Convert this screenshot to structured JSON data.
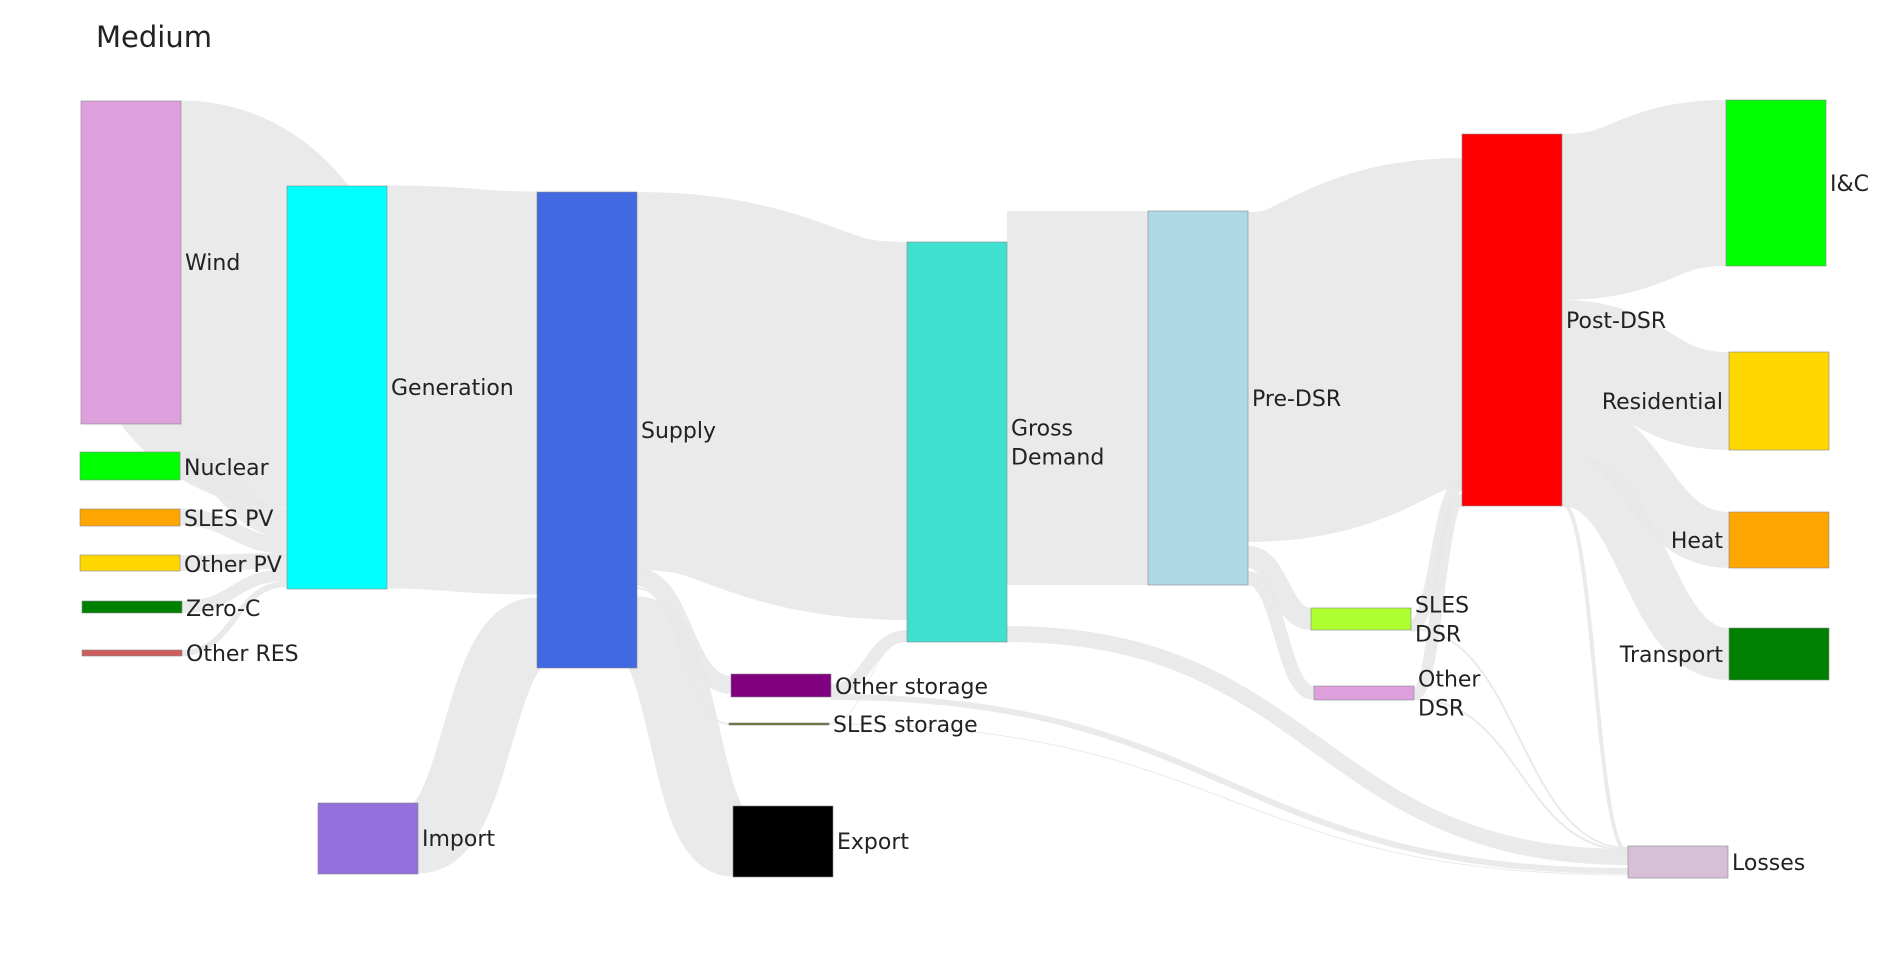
{
  "title": "Medium",
  "nodes": [
    {
      "id": "wind",
      "label": "Wind",
      "color": "#dda0dd"
    },
    {
      "id": "nuclear",
      "label": "Nuclear",
      "color": "#00ff00"
    },
    {
      "id": "sles_pv",
      "label": "SLES PV",
      "color": "#ffa500"
    },
    {
      "id": "other_pv",
      "label": "Other PV",
      "color": "#ffd700"
    },
    {
      "id": "zero_c",
      "label": "Zero-C",
      "color": "#008000"
    },
    {
      "id": "other_res",
      "label": "Other RES",
      "color": "#cd5c5c"
    },
    {
      "id": "generation",
      "label": "Generation",
      "color": "#00ffff"
    },
    {
      "id": "import",
      "label": "Import",
      "color": "#9370db"
    },
    {
      "id": "supply",
      "label": "Supply",
      "color": "#4169e1"
    },
    {
      "id": "other_storage",
      "label": "Other storage",
      "color": "#800080"
    },
    {
      "id": "sles_storage",
      "label": "SLES storage",
      "color": "#6b6b2f"
    },
    {
      "id": "export",
      "label": "Export",
      "color": "#000000"
    },
    {
      "id": "gross_demand",
      "label": "Gross Demand",
      "label_lines": [
        "Gross",
        "Demand"
      ],
      "color": "#40e0d0"
    },
    {
      "id": "pre_dsr",
      "label": "Pre-DSR",
      "color": "#add8e6"
    },
    {
      "id": "sles_dsr",
      "label": "SLES DSR",
      "label_lines": [
        "SLES",
        "DSR"
      ],
      "color": "#adff2f"
    },
    {
      "id": "other_dsr",
      "label": "Other DSR",
      "label_lines": [
        "Other",
        "DSR"
      ],
      "color": "#dda0dd"
    },
    {
      "id": "post_dsr",
      "label": "Post-DSR",
      "color": "#ff0000"
    },
    {
      "id": "ic",
      "label": "I&C",
      "color": "#00ff00"
    },
    {
      "id": "residential",
      "label": "Residential",
      "color": "#ffd700"
    },
    {
      "id": "heat",
      "label": "Heat",
      "color": "#ffa500"
    },
    {
      "id": "transport",
      "label": "Transport",
      "color": "#008000"
    },
    {
      "id": "losses",
      "label": "Losses",
      "color": "#d8bfd8"
    }
  ],
  "colors": {
    "link": "#e8e8e8",
    "node_border": "#888888"
  }
}
